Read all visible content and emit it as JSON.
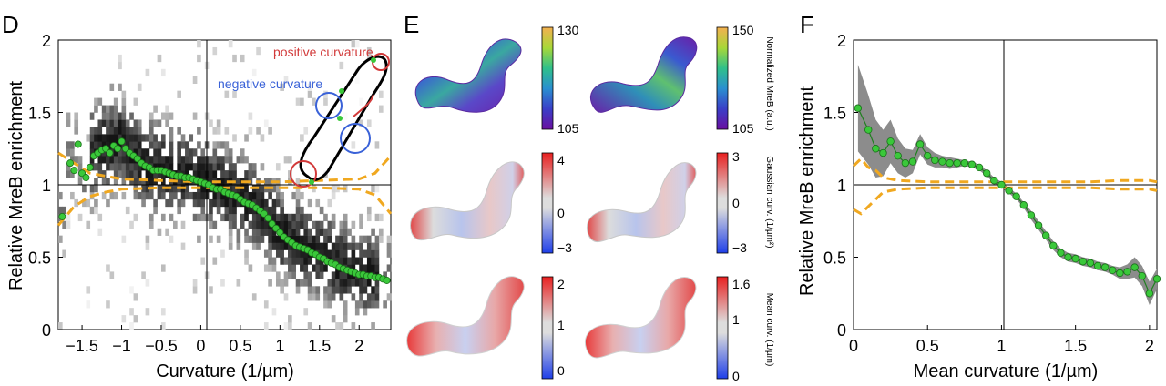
{
  "panels": {
    "d_letter": "D",
    "e_letter": "E",
    "f_letter": "F"
  },
  "colors": {
    "points": "#3ac83a",
    "points_edge": "#1a6f1a",
    "dashed": "#f0a820",
    "band": "#8c8c8c",
    "positive": "#d23a3a",
    "negative": "#3a62d8"
  },
  "panel_d": {
    "ylabel": "Relative MreB enrichment",
    "xlabel": "Curvature (1/µm)",
    "xticks": [
      "−1.5",
      "−1",
      "−0.5",
      "0",
      "0.5",
      "1",
      "1.5",
      "2"
    ],
    "yticks": [
      "0",
      "0.5",
      "1",
      "1.5",
      "2"
    ],
    "legend_positive": "positive curvature",
    "legend_negative": "negative curvature"
  },
  "panel_e": {
    "rows": [
      {
        "label": "Normalized MreB (a.u.)",
        "cb_left": {
          "top": "130",
          "bottom": "105"
        },
        "cb_right": {
          "top": "150",
          "bottom": "105"
        }
      },
      {
        "label": "Gaussian curv. (1/µm²)",
        "cb_left": {
          "top": "4",
          "mid": "0",
          "bottom": "−3"
        },
        "cb_right": {
          "top": "3",
          "mid": "0",
          "bottom": "−3"
        }
      },
      {
        "label": "Mean curv. (1/µm)",
        "cb_left": {
          "top": "2",
          "mid": "1",
          "bottom": "0"
        },
        "cb_right": {
          "top": "1.6",
          "mid": "1",
          "bottom": "0"
        }
      }
    ]
  },
  "panel_f": {
    "ylabel": "Relative MreB enrichment",
    "xlabel": "Mean curvature (1/µm)",
    "xticks": [
      "0",
      "0.5",
      "1",
      "1.5",
      "2"
    ],
    "yticks": [
      "0",
      "0.5",
      "1",
      "1.5",
      "2"
    ]
  },
  "chart_data": [
    {
      "type": "scatter",
      "panel": "D",
      "xlabel": "Curvature (1/µm)",
      "ylabel": "Relative MreB enrichment",
      "xlim": [
        -1.8,
        2.4
      ],
      "ylim": [
        0,
        2
      ],
      "grid": false,
      "series": [
        {
          "x": [
            -1.75,
            -1.65,
            -1.6,
            -1.55,
            -1.5,
            -1.45,
            -1.4,
            -1.35,
            -1.3,
            -1.25,
            -1.2,
            -1.15,
            -1.1,
            -1.05,
            -1.0,
            -0.95,
            -0.9,
            -0.85,
            -0.8,
            -0.75,
            -0.7,
            -0.65,
            -0.6,
            -0.55,
            -0.5,
            -0.45,
            -0.4,
            -0.35,
            -0.3,
            -0.25,
            -0.2,
            -0.15,
            -0.1,
            -0.05,
            0.0,
            0.05,
            0.1,
            0.15,
            0.2,
            0.25,
            0.3,
            0.35,
            0.4,
            0.45,
            0.5,
            0.55,
            0.6,
            0.65,
            0.7,
            0.75,
            0.8,
            0.85,
            0.9,
            0.95,
            1.0,
            1.05,
            1.1,
            1.15,
            1.2,
            1.25,
            1.3,
            1.35,
            1.4,
            1.45,
            1.5,
            1.55,
            1.6,
            1.65,
            1.7,
            1.75,
            1.8,
            1.85,
            1.9,
            1.95,
            2.0,
            2.05,
            2.1,
            2.15,
            2.2,
            2.25,
            2.3,
            2.35
          ],
          "y": [
            0.78,
            1.15,
            1.1,
            1.28,
            1.08,
            1.05,
            1.12,
            1.2,
            1.22,
            1.24,
            1.25,
            1.22,
            1.27,
            1.25,
            1.3,
            1.25,
            1.22,
            1.2,
            1.18,
            1.15,
            1.13,
            1.12,
            1.1,
            1.1,
            1.1,
            1.09,
            1.08,
            1.07,
            1.06,
            1.06,
            1.05,
            1.05,
            1.04,
            1.03,
            1.02,
            1.01,
            1.0,
            0.98,
            0.97,
            0.97,
            0.95,
            0.94,
            0.93,
            0.92,
            0.9,
            0.88,
            0.87,
            0.86,
            0.84,
            0.82,
            0.8,
            0.77,
            0.73,
            0.7,
            0.67,
            0.64,
            0.62,
            0.6,
            0.58,
            0.57,
            0.56,
            0.55,
            0.53,
            0.52,
            0.5,
            0.49,
            0.47,
            0.46,
            0.45,
            0.43,
            0.42,
            0.41,
            0.4,
            0.39,
            0.38,
            0.38,
            0.37,
            0.37,
            0.36,
            0.36,
            0.35,
            0.34
          ]
        }
      ],
      "dashed_bounds": {
        "x": [
          -1.8,
          -1.6,
          -1.4,
          -1.2,
          -1.0,
          -0.5,
          0.0,
          0.5,
          1.0,
          1.5,
          2.0,
          2.2,
          2.4
        ],
        "upper": [
          1.22,
          1.15,
          1.08,
          1.06,
          1.04,
          1.03,
          1.02,
          1.02,
          1.02,
          1.03,
          1.04,
          1.08,
          1.2
        ],
        "lower": [
          0.72,
          0.85,
          0.92,
          0.95,
          0.97,
          0.98,
          0.98,
          0.98,
          0.98,
          0.98,
          0.97,
          0.93,
          0.8
        ]
      }
    },
    {
      "type": "line",
      "panel": "F",
      "xlabel": "Mean curvature (1/µm)",
      "ylabel": "Relative MreB enrichment",
      "xlim": [
        0,
        2.05
      ],
      "ylim": [
        0,
        2
      ],
      "grid": false,
      "series": [
        {
          "x": [
            0.03,
            0.1,
            0.15,
            0.2,
            0.25,
            0.3,
            0.35,
            0.4,
            0.45,
            0.5,
            0.55,
            0.6,
            0.65,
            0.7,
            0.75,
            0.8,
            0.85,
            0.9,
            0.95,
            1.0,
            1.05,
            1.1,
            1.15,
            1.2,
            1.25,
            1.3,
            1.35,
            1.4,
            1.45,
            1.5,
            1.55,
            1.6,
            1.65,
            1.7,
            1.75,
            1.8,
            1.85,
            1.9,
            1.95,
            2.0,
            2.05
          ],
          "y": [
            1.53,
            1.38,
            1.25,
            1.22,
            1.3,
            1.2,
            1.15,
            1.16,
            1.28,
            1.2,
            1.17,
            1.16,
            1.15,
            1.15,
            1.15,
            1.14,
            1.12,
            1.08,
            1.03,
            1.0,
            0.96,
            0.92,
            0.86,
            0.79,
            0.72,
            0.65,
            0.58,
            0.53,
            0.5,
            0.49,
            0.47,
            0.46,
            0.44,
            0.43,
            0.41,
            0.39,
            0.4,
            0.43,
            0.37,
            0.25,
            0.35
          ],
          "band_upper": [
            1.83,
            1.62,
            1.45,
            1.38,
            1.45,
            1.32,
            1.25,
            1.24,
            1.35,
            1.26,
            1.22,
            1.2,
            1.19,
            1.18,
            1.17,
            1.16,
            1.14,
            1.1,
            1.05,
            1.02,
            0.98,
            0.94,
            0.88,
            0.82,
            0.75,
            0.68,
            0.61,
            0.56,
            0.53,
            0.52,
            0.5,
            0.49,
            0.47,
            0.46,
            0.44,
            0.43,
            0.45,
            0.5,
            0.44,
            0.33,
            0.42
          ],
          "band_lower": [
            1.23,
            1.14,
            1.05,
            1.06,
            1.15,
            1.08,
            1.05,
            1.08,
            1.21,
            1.14,
            1.12,
            1.12,
            1.11,
            1.12,
            1.13,
            1.12,
            1.1,
            1.06,
            1.01,
            0.98,
            0.94,
            0.9,
            0.84,
            0.76,
            0.69,
            0.62,
            0.55,
            0.5,
            0.47,
            0.46,
            0.44,
            0.43,
            0.41,
            0.4,
            0.38,
            0.35,
            0.35,
            0.36,
            0.3,
            0.17,
            0.28
          ]
        }
      ],
      "dashed_bounds": {
        "x": [
          0,
          0.05,
          0.1,
          0.15,
          0.2,
          0.3,
          0.5,
          0.7,
          1.0,
          1.3,
          1.6,
          1.8,
          2.0,
          2.05
        ],
        "upper": [
          1.13,
          1.18,
          1.12,
          1.1,
          1.05,
          1.03,
          1.02,
          1.02,
          1.02,
          1.02,
          1.02,
          1.03,
          1.03,
          1.02
        ],
        "lower": [
          0.83,
          0.8,
          0.85,
          0.9,
          0.95,
          0.97,
          0.98,
          0.98,
          0.98,
          0.98,
          0.98,
          0.97,
          0.97,
          0.96
        ]
      }
    }
  ]
}
